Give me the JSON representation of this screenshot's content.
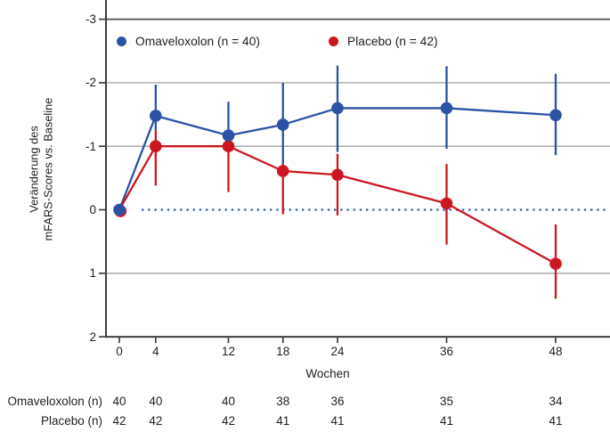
{
  "figure": {
    "background": "#ffffff",
    "text_color": "#1f1f1f"
  },
  "legend": {
    "items": [
      {
        "label": "Omaveloxolon (n = 40)",
        "color": "#2b52a4"
      },
      {
        "label": "Placebo (n = 42)",
        "color": "#cd1720"
      }
    ]
  },
  "chart_data": {
    "type": "line",
    "title": "",
    "xlabel": "Wochen",
    "ylabel_lines": [
      "Veränderung des",
      "mFARS-Scores vs. Baseline"
    ],
    "x": [
      0,
      4,
      12,
      18,
      24,
      36,
      48
    ],
    "xticks": [
      0,
      4,
      12,
      18,
      24,
      36,
      48
    ],
    "yticks": [
      -3,
      -2,
      -1,
      0,
      1,
      2
    ],
    "y_axis_inverted": true,
    "ylim": [
      -3,
      2
    ],
    "gridlines_y": [
      -2,
      -1,
      1
    ],
    "grid_color": "#a2a2a2",
    "axis_color": "#3e3e3e",
    "top_border_y": -3,
    "zero_reference_line": {
      "y": 0,
      "style": "dotted",
      "color": "#3560b2"
    },
    "series": [
      {
        "name": "Omaveloxolon (n = 40)",
        "color": "#2b52a4",
        "means": [
          0,
          -1.48,
          -1.17,
          -1.34,
          -1.6,
          -1.6,
          -1.49
        ],
        "error_bars": [
          {
            "week": 4,
            "from": -1.97,
            "to": -1.25
          },
          {
            "week": 12,
            "from": -1.7,
            "to": -1.0
          },
          {
            "week": 18,
            "from": -2.0,
            "to": -0.73
          },
          {
            "week": 24,
            "from": -2.27,
            "to": -0.91
          },
          {
            "week": 36,
            "from": -2.26,
            "to": -0.96
          },
          {
            "week": 48,
            "from": -2.14,
            "to": -0.86
          }
        ]
      },
      {
        "name": "Placebo (n = 42)",
        "color": "#cd1720",
        "means": [
          0,
          -1.0,
          -1.0,
          -0.61,
          -0.55,
          -0.1,
          0.85
        ],
        "error_bars": [
          {
            "week": 4,
            "from": -1.25,
            "to": -0.38
          },
          {
            "week": 12,
            "from": -1.0,
            "to": -0.28
          },
          {
            "week": 18,
            "from": -0.73,
            "to": 0.07
          },
          {
            "week": 24,
            "from": -0.88,
            "to": 0.09
          },
          {
            "week": 36,
            "from": -0.72,
            "to": 0.55
          },
          {
            "week": 48,
            "from": 0.23,
            "to": 1.4
          }
        ]
      }
    ]
  },
  "table": {
    "rows": [
      {
        "label": "Omaveloxolon (n)",
        "values": [
          40,
          40,
          40,
          38,
          36,
          35,
          34
        ]
      },
      {
        "label": "Placebo (n)",
        "values": [
          42,
          42,
          42,
          41,
          41,
          41,
          41
        ]
      }
    ]
  }
}
